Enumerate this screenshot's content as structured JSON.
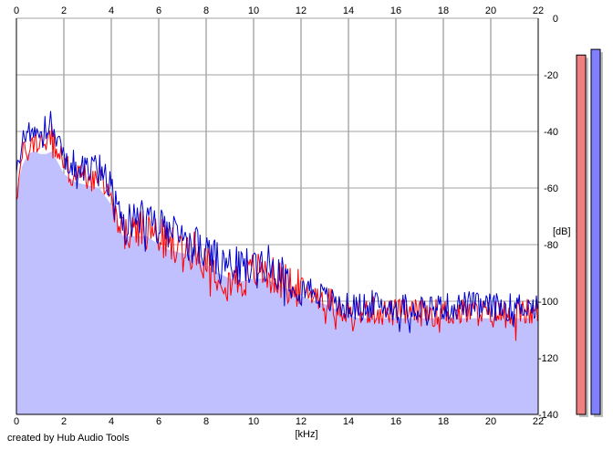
{
  "chart_data": {
    "type": "line",
    "xlabel": "[kHz]",
    "ylabel": "[dB]",
    "xlim": [
      0,
      22
    ],
    "ylim": [
      -140,
      0
    ],
    "x_ticks": [
      "0",
      "2",
      "4",
      "6",
      "8",
      "10",
      "12",
      "14",
      "16",
      "18",
      "20",
      "22"
    ],
    "y_ticks": [
      "0",
      "-20",
      "-40",
      "-60",
      "-80",
      "-100",
      "-120",
      "-140"
    ],
    "grid": true,
    "series": [
      {
        "color": "#ff0000",
        "x": [
          0,
          0.25,
          0.5,
          0.75,
          1.0,
          1.25,
          1.5,
          1.75,
          2.0,
          2.5,
          3.0,
          3.5,
          4.0,
          4.2,
          4.5,
          5.0,
          5.5,
          6.0,
          6.5,
          7.0,
          7.5,
          8.0,
          8.5,
          9.0,
          9.5,
          10.0,
          10.5,
          11.0,
          11.5,
          12.0,
          12.5,
          13.0,
          13.5,
          14.0,
          14.5,
          15.0,
          15.5,
          16.0,
          16.5,
          17.0,
          17.5,
          18.0,
          18.5,
          19.0,
          19.5,
          20.0,
          20.5,
          21.0,
          21.5,
          22.0
        ],
        "values": [
          -62,
          -49,
          -46,
          -44,
          -43,
          -44,
          -42,
          -47,
          -52,
          -56,
          -56,
          -57,
          -64,
          -69,
          -76,
          -76,
          -74,
          -77,
          -80,
          -81,
          -82,
          -86,
          -90,
          -92,
          -93,
          -89,
          -90,
          -92,
          -94,
          -96,
          -97,
          -99,
          -101,
          -104,
          -104,
          -103,
          -104,
          -104,
          -104,
          -104,
          -104,
          -104,
          -104,
          -104,
          -104,
          -105,
          -104,
          -104,
          -104,
          -104
        ]
      },
      {
        "color": "#0000cc",
        "x": [
          0,
          0.25,
          0.5,
          0.75,
          1.0,
          1.25,
          1.5,
          1.75,
          2.0,
          2.5,
          3.0,
          3.5,
          4.0,
          4.2,
          4.5,
          5.0,
          5.5,
          6.0,
          6.5,
          7.0,
          7.5,
          8.0,
          8.5,
          9.0,
          9.5,
          10.0,
          10.5,
          11.0,
          11.5,
          12.0,
          12.5,
          13.0,
          13.5,
          14.0,
          14.5,
          15.0,
          15.5,
          16.0,
          16.5,
          17.0,
          17.5,
          18.0,
          18.5,
          19.0,
          19.5,
          20.0,
          20.5,
          21.0,
          21.5,
          22.0
        ],
        "values": [
          -55,
          -45,
          -40,
          -38,
          -38,
          -39,
          -37,
          -44,
          -49,
          -52,
          -54,
          -52,
          -60,
          -66,
          -72,
          -70,
          -71,
          -74,
          -76,
          -78,
          -80,
          -83,
          -86,
          -87,
          -88,
          -87,
          -86,
          -89,
          -92,
          -94,
          -96,
          -99,
          -101,
          -102,
          -102,
          -101,
          -102,
          -102,
          -102,
          -102,
          -102,
          -102,
          -102,
          -101,
          -102,
          -102,
          -102,
          -102,
          -101,
          -103
        ]
      }
    ],
    "fill": {
      "color": "#c0c0ff",
      "x": [
        0,
        0.25,
        0.5,
        0.75,
        1.0,
        1.25,
        1.5,
        1.75,
        2.0,
        2.5,
        3.0,
        3.5,
        4.0,
        4.2,
        4.5,
        5.0,
        5.5,
        6.0,
        6.5,
        7.0,
        7.5,
        8.0,
        8.5,
        9.0,
        9.5,
        10.0,
        10.5,
        11.0,
        11.5,
        12.0,
        12.5,
        13.0,
        13.5,
        14.0,
        14.5,
        15.0,
        15.5,
        16.0,
        16.5,
        17.0,
        17.5,
        18.0,
        18.5,
        19.0,
        19.5,
        20.0,
        20.5,
        21.0,
        21.5,
        22.0
      ],
      "values": [
        -61,
        -52,
        -48,
        -47,
        -48,
        -48,
        -47,
        -51,
        -55,
        -58,
        -59,
        -60,
        -66,
        -71,
        -77,
        -77,
        -77,
        -80,
        -82,
        -83,
        -84,
        -87,
        -90,
        -92,
        -93,
        -92,
        -92,
        -94,
        -96,
        -98,
        -100,
        -101,
        -103,
        -105,
        -106,
        -106,
        -106,
        -106,
        -106,
        -106,
        -106,
        -106,
        -106,
        -106,
        -106,
        -106,
        -106,
        -106,
        -106,
        -106
      ]
    },
    "level_meters": [
      {
        "color": "#f08080",
        "shadow": "#c0c0c0",
        "value": -13
      },
      {
        "color": "#8080ff",
        "shadow": "#c0c0c0",
        "value": -11
      }
    ]
  },
  "footer": {
    "credit": "created by Hub Audio Tools"
  }
}
